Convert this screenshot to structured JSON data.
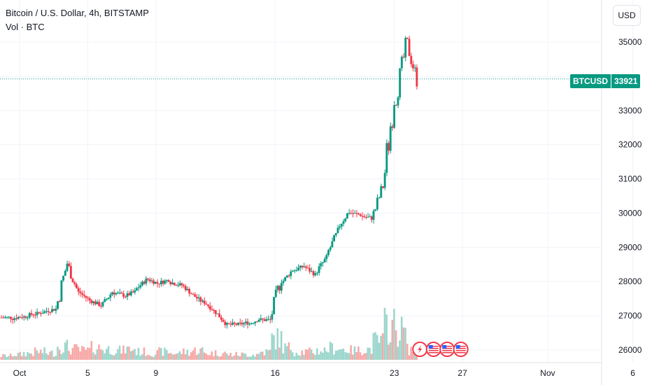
{
  "header": {
    "title": "Bitcoin / U.S. Dollar, 4h, BITSTAMP",
    "volume_label": "Vol · BTC"
  },
  "currency_button": "USD",
  "price_tag": {
    "symbol": "BTCUSD",
    "value": "33921"
  },
  "colors": {
    "up": "#089981",
    "down": "#f23645",
    "up_volume": "#9cd6cc",
    "down_volume": "#f7a9a7",
    "grid": "#f0f3fa"
  },
  "chart_data": {
    "type": "candlestick",
    "ylim": [
      25700,
      35500
    ],
    "y_ticks": [
      26000,
      27000,
      28000,
      29000,
      30000,
      31000,
      32000,
      33000,
      35000
    ],
    "y_tick_labels": [
      "26000",
      "27000",
      "28000",
      "29000",
      "30000",
      "31000",
      "32000",
      "33000",
      "35000"
    ],
    "x_ticks": [
      "Oct",
      "5",
      "9",
      "16",
      "23",
      "27",
      "Nov",
      "6"
    ],
    "x_tick_days": [
      1,
      5,
      9,
      16,
      23,
      27,
      32,
      37
    ],
    "last_price": 33921,
    "events": [
      {
        "icon": "lightning-icon",
        "day": 24.5
      },
      {
        "icon": "us-flag-icon",
        "day": 25.3
      },
      {
        "icon": "us-flag-icon",
        "day": 26.1
      },
      {
        "icon": "us-flag-icon",
        "day": 26.9
      }
    ],
    "series_daily_closes": {
      "start_day": 0,
      "candles_per_day": 6,
      "closes": [
        26950,
        26980,
        27060,
        27120,
        27200,
        28550,
        27650,
        27450,
        27300,
        27700,
        27600,
        27700,
        28050,
        27950,
        28050,
        27900,
        27650,
        27400,
        27150,
        26800,
        26750,
        26800,
        26900,
        26880,
        28150,
        28350,
        28450,
        28200,
        28700,
        29450,
        30050,
        29950,
        29850,
        30800,
        33500,
        34800,
        33900
      ],
      "volumes": [
        0.3,
        0.4,
        0.5,
        0.6,
        0.5,
        1.0,
        0.8,
        0.7,
        0.9,
        0.8,
        0.7,
        0.8,
        0.6,
        0.5,
        0.6,
        0.5,
        0.6,
        0.7,
        0.5,
        0.5,
        0.4,
        0.4,
        0.4,
        0.6,
        1.6,
        0.9,
        0.6,
        0.6,
        0.7,
        0.9,
        0.8,
        0.7,
        0.8,
        1.4,
        2.6,
        2.2,
        0.8
      ]
    }
  }
}
